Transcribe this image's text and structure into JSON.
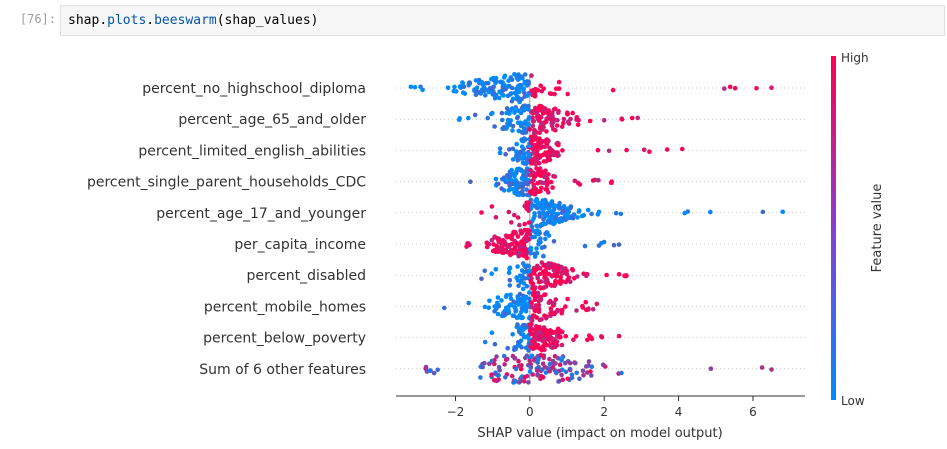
{
  "cell": {
    "prompt": "[76]:",
    "code_prefix": "shap",
    "code_dot1": ".",
    "code_attr1": "plots",
    "code_dot2": ".",
    "code_attr2": "beeswarm",
    "code_args": "(shap_values)"
  },
  "colors": {
    "high": "#ff0052",
    "low": "#008bfb",
    "zero_line": "#999999",
    "row_line": "#cccccc"
  },
  "chart_data": {
    "type": "scatter",
    "subtype": "beeswarm",
    "xlabel": "SHAP value (impact on model output)",
    "xticks": [
      "−2",
      "0",
      "2",
      "4",
      "6"
    ],
    "xtick_values": [
      -2,
      0,
      2,
      4,
      6
    ],
    "xlim": [
      -3.6,
      7.4
    ],
    "colorbar": {
      "label": "Feature value",
      "high": "High",
      "low": "Low"
    },
    "features": [
      {
        "name": "percent_no_highschool_diploma",
        "min": -3.2,
        "max": 6.5,
        "core": [
          -2.8,
          1.5
        ]
      },
      {
        "name": "percent_age_65_and_older",
        "min": -1.9,
        "max": 2.9,
        "core": [
          -1.4,
          1.6
        ]
      },
      {
        "name": "percent_limited_english_abilities",
        "min": -0.8,
        "max": 4.1,
        "core": [
          -0.8,
          1.0
        ]
      },
      {
        "name": "percent_single_parent_households_CDC",
        "min": -1.6,
        "max": 2.2,
        "core": [
          -1.2,
          1.0
        ]
      },
      {
        "name": "percent_age_17_and_younger",
        "min": -1.3,
        "max": 6.8,
        "core": [
          -0.8,
          2.0
        ]
      },
      {
        "name": "per_capita_income",
        "min": -1.7,
        "max": 2.4,
        "core": [
          -1.6,
          1.0
        ]
      },
      {
        "name": "percent_disabled",
        "min": -1.3,
        "max": 2.6,
        "core": [
          -0.9,
          1.8
        ]
      },
      {
        "name": "percent_mobile_homes",
        "min": -2.3,
        "max": 1.8,
        "core": [
          -1.5,
          1.4
        ]
      },
      {
        "name": "percent_below_poverty",
        "min": -1.2,
        "max": 2.4,
        "core": [
          -0.9,
          1.4
        ]
      },
      {
        "name": "Sum of 6 other features",
        "min": -2.8,
        "max": 6.5,
        "core": [
          -2.4,
          3.0
        ]
      }
    ]
  }
}
